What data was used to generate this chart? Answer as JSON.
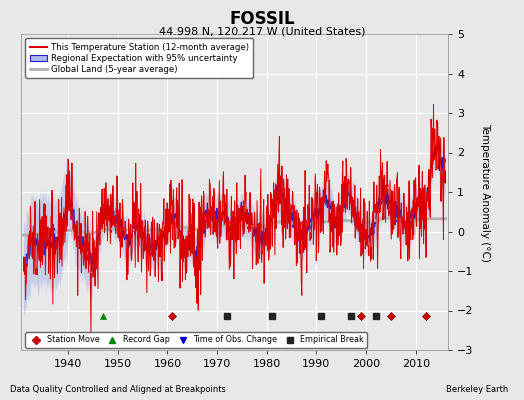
{
  "title": "FOSSIL",
  "subtitle": "44.998 N, 120.217 W (United States)",
  "ylabel": "Temperature Anomaly (°C)",
  "xlabel_note": "Data Quality Controlled and Aligned at Breakpoints",
  "credit": "Berkeley Earth",
  "ylim": [
    -3.0,
    5.0
  ],
  "yticks": [
    -3,
    -2,
    -1,
    0,
    1,
    2,
    3,
    4,
    5
  ],
  "xlim": [
    1930.5,
    2016.5
  ],
  "xticks": [
    1940,
    1950,
    1960,
    1970,
    1980,
    1990,
    2000,
    2010
  ],
  "bg_color": "#e8e8e8",
  "plot_bg_color": "#e8e8e8",
  "grid_color": "#ffffff",
  "station_color": "#dd0000",
  "regional_fill_color": "#b0b8e8",
  "regional_line_color": "#2020cc",
  "global_color": "#b0b0b0",
  "legend_items": [
    "This Temperature Station (12-month average)",
    "Regional Expectation with 95% uncertainty",
    "Global Land (5-year average)"
  ],
  "marker_items": [
    {
      "label": "Station Move",
      "color": "#cc0000",
      "marker": "D"
    },
    {
      "label": "Record Gap",
      "color": "#008800",
      "marker": "^"
    },
    {
      "label": "Time of Obs. Change",
      "color": "#0000cc",
      "marker": "v"
    },
    {
      "label": "Empirical Break",
      "color": "#222222",
      "marker": "s"
    }
  ],
  "record_gap_years": [
    1947
  ],
  "station_move_years": [
    1961,
    1999,
    2005,
    2012
  ],
  "tobs_change_years": [],
  "empirical_break_years": [
    1972,
    1981,
    1991,
    1997,
    2002
  ]
}
